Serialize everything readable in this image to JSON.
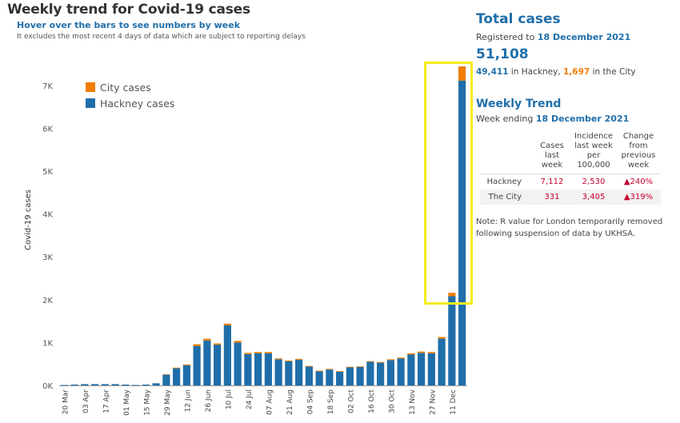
{
  "header": {
    "title": "Weekly trend for Covid-19 cases",
    "subtitle": "Hover over the bars to see numbers by week",
    "note": "It excludes the most recent 4 days of data which are subject to reporting delays"
  },
  "chart_data": {
    "type": "bar",
    "stacked": true,
    "ylabel": "Covid-19 cases",
    "ylim": [
      0,
      7700
    ],
    "yticks": [
      0,
      1000,
      2000,
      3000,
      4000,
      5000,
      6000,
      7000
    ],
    "ytick_labels": [
      "0K",
      "1K",
      "2K",
      "3K",
      "4K",
      "5K",
      "6K",
      "7K"
    ],
    "x_labels": [
      "20 Mar",
      "03 Apr",
      "17 Apr",
      "01 May",
      "15 May",
      "29 May",
      "12 Jun",
      "26 Jun",
      "10 Jul",
      "24 Jul",
      "07 Aug",
      "21 Aug",
      "04 Sep",
      "18 Sep",
      "02 Oct",
      "16 Oct",
      "30 Oct",
      "13 Nov",
      "27 Nov",
      "11 Dec"
    ],
    "legend": [
      "City cases",
      "Hackney cases"
    ],
    "legend_position": "top-left",
    "series": [
      {
        "name": "Hackney cases",
        "color": "#1f6eaa",
        "values": [
          10,
          20,
          30,
          30,
          30,
          30,
          20,
          10,
          20,
          50,
          250,
          400,
          470,
          920,
          1050,
          950,
          1400,
          1000,
          730,
          750,
          750,
          610,
          560,
          600,
          440,
          330,
          370,
          320,
          420,
          430,
          550,
          530,
          590,
          630,
          720,
          760,
          750,
          1090,
          2080,
          7112
        ]
      },
      {
        "name": "City cases",
        "color": "#f07c00",
        "values": [
          0,
          0,
          0,
          0,
          0,
          0,
          0,
          0,
          0,
          0,
          10,
          15,
          20,
          40,
          40,
          30,
          40,
          40,
          30,
          30,
          30,
          20,
          20,
          20,
          15,
          15,
          15,
          15,
          15,
          15,
          15,
          15,
          20,
          20,
          30,
          30,
          30,
          40,
          80,
          331
        ]
      }
    ]
  },
  "panel": {
    "total_title": "Total cases",
    "registered_prefix": "Registered to ",
    "registered_date": "18 December 2021",
    "total_value": "51,108",
    "hackney_value": "49,411",
    "hackney_suffix": " in Hackney, ",
    "city_value": "1,697",
    "city_suffix": " in the City",
    "weekly_title": "Weekly Trend",
    "week_prefix": "Week ending ",
    "week_date": "18 December 2021",
    "table": {
      "headers": [
        "Cases last week",
        "Incidence last week per 100,000",
        "Change from previous week"
      ],
      "rows": [
        {
          "label": "Hackney",
          "cases": "7,112",
          "incidence": "2,530",
          "change": "▲240%"
        },
        {
          "label": "The City",
          "cases": "331",
          "incidence": "3,405",
          "change": "▲319%"
        }
      ]
    },
    "footnote": "Note: R value for London temporarily removed following suspension of data by UKHSA."
  },
  "colors": {
    "hackney": "#1f6eaa",
    "city": "#f07c00",
    "highlight": "#f5ec1e",
    "change": "#c5002b"
  }
}
